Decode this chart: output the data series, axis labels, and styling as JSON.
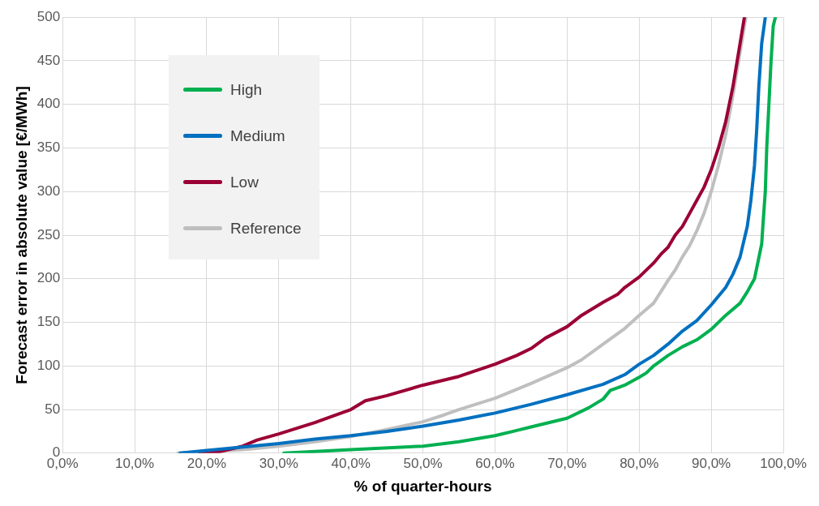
{
  "chart_data": {
    "type": "line",
    "xlabel": "% of quarter-hours",
    "ylabel": "Forecast error in absolute value [€/MWh]",
    "xlim": [
      0,
      100
    ],
    "ylim": [
      0,
      500
    ],
    "xticks": [
      {
        "value": 0,
        "label": "0,0%"
      },
      {
        "value": 10,
        "label": "10,0%"
      },
      {
        "value": 20,
        "label": "20,0%"
      },
      {
        "value": 30,
        "label": "30,0%"
      },
      {
        "value": 40,
        "label": "40,0%"
      },
      {
        "value": 50,
        "label": "50,0%"
      },
      {
        "value": 60,
        "label": "60,0%"
      },
      {
        "value": 70,
        "label": "70,0%"
      },
      {
        "value": 80,
        "label": "80,0%"
      },
      {
        "value": 90,
        "label": "90,0%"
      },
      {
        "value": 100,
        "label": "100,0%"
      }
    ],
    "yticks": [
      0,
      50,
      100,
      150,
      200,
      250,
      300,
      350,
      400,
      450,
      500
    ],
    "grid": true,
    "legend": "top left",
    "marker": "none",
    "line_style": "solid",
    "series": [
      {
        "name": "High",
        "color": "#00b050",
        "x": [
          30.7,
          40,
          50,
          55,
          60,
          63,
          65,
          70,
          73,
          75,
          76,
          78,
          80,
          81,
          82,
          84,
          86,
          88,
          90,
          92,
          94,
          95,
          96,
          96.5,
          97,
          97.2,
          97.5,
          97.7,
          98,
          98.3,
          98.6,
          98.9
        ],
        "values": [
          0,
          4,
          8,
          13,
          20,
          26,
          30,
          40,
          52,
          62,
          72,
          78,
          87,
          92,
          100,
          112,
          122,
          130,
          142,
          158,
          172,
          185,
          200,
          220,
          240,
          265,
          300,
          350,
          400,
          450,
          490,
          500
        ]
      },
      {
        "name": "Medium",
        "color": "#0070c0",
        "x": [
          16.3,
          20,
          25,
          30,
          35,
          40,
          45,
          50,
          55,
          60,
          65,
          70,
          75,
          78,
          80,
          82,
          84,
          86,
          88,
          90,
          92,
          93,
          94,
          95,
          95.5,
          96,
          96.3,
          96.6,
          97,
          97.5
        ],
        "values": [
          0,
          3,
          7,
          11,
          16,
          20,
          25,
          31,
          38,
          46,
          56,
          67,
          79,
          90,
          102,
          112,
          125,
          140,
          152,
          170,
          190,
          205,
          225,
          260,
          290,
          330,
          370,
          420,
          470,
          500
        ]
      },
      {
        "name": "Low",
        "color": "#9b0034",
        "x": [
          19,
          22,
          25,
          27,
          30,
          35,
          40,
          42,
          45,
          50,
          55,
          60,
          63,
          65,
          67,
          70,
          72,
          75,
          77,
          78,
          80,
          82,
          83,
          84,
          85,
          86,
          87,
          88,
          89,
          90,
          91,
          92,
          93,
          94,
          94.6
        ],
        "values": [
          0,
          2,
          8,
          15,
          22,
          35,
          50,
          60,
          66,
          78,
          88,
          102,
          112,
          120,
          132,
          145,
          158,
          173,
          182,
          190,
          202,
          218,
          228,
          236,
          250,
          260,
          275,
          290,
          305,
          325,
          350,
          380,
          420,
          470,
          500
        ]
      },
      {
        "name": "Reference",
        "color": "#bfbfbf",
        "x": [
          16,
          20,
          25,
          30,
          35,
          40,
          45,
          50,
          53,
          55,
          60,
          65,
          70,
          72,
          75,
          78,
          80,
          82,
          83,
          84,
          85,
          86,
          87,
          88,
          89,
          90,
          91,
          92,
          93,
          94,
          94.8
        ],
        "values": [
          0,
          2,
          4,
          8,
          13,
          19,
          27,
          36,
          44,
          50,
          63,
          80,
          98,
          107,
          125,
          143,
          158,
          172,
          185,
          198,
          210,
          225,
          238,
          255,
          275,
          300,
          330,
          365,
          410,
          460,
          500
        ]
      }
    ]
  }
}
